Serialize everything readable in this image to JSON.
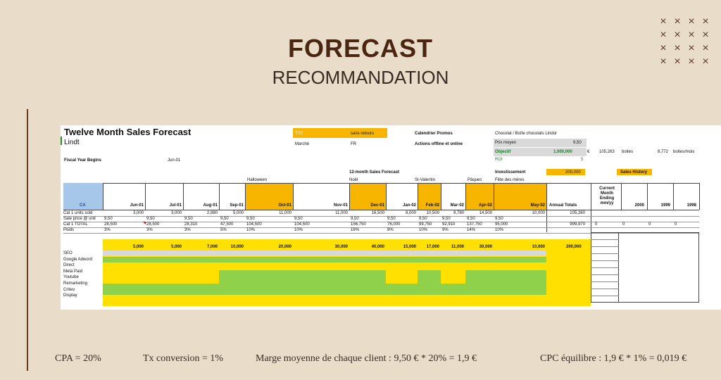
{
  "slide": {
    "title": "FORECAST",
    "subtitle": "RECOMMANDATION",
    "decor_mark": "×"
  },
  "sheet": {
    "title": "Twelve Month Sales Forecast",
    "brand": "Lindt",
    "fiscal_label": "Fiscal Year Begins",
    "fiscal_value": "Jun-01",
    "ttc": "TTC",
    "ttc_value": "sans retours",
    "marche_label": "Marché",
    "marche_value": "FR",
    "calendrier": "Calendrier Promos",
    "actions": "Actions offline et online",
    "product": "Chocolat / Boîte chocolats Lindor",
    "prix_moyen_label": "Prix moyen",
    "prix_moyen_value": "9,50",
    "objectif_label": "Objectif",
    "objectif_value": "1,000,000",
    "objectif_unit": "€",
    "boites_value": "105,263",
    "boites_label": "boites",
    "boites_mois_value": "8,772",
    "boites_mois_label": "boites/mois",
    "roi_label": "ROI",
    "roi_value": "5",
    "sales_forecast_label": "12-month Sales Forecast",
    "investissement_label": "Investissement",
    "investissement_value": "200,000",
    "sales_history_label": "Sales History",
    "events": [
      "Halloween",
      "Noël",
      "St-Valentin",
      "Pâques",
      "Fête des mères"
    ],
    "ca_label": "CA",
    "months": [
      "Jun-01",
      "Jul-01",
      "Aug-01",
      "Sep-01",
      "Oct-01",
      "Nov-01",
      "Dec-01",
      "Jan-02",
      "Feb-02",
      "Mar-02",
      "Apr-02",
      "May-02"
    ],
    "annual_label": "Annual Totals",
    "current_month": [
      "Current",
      "Month",
      "Ending",
      "mm/yy"
    ],
    "history_years": [
      "2000",
      "1999",
      "1998"
    ],
    "rows": [
      {
        "label": "Cat 1 units sold",
        "values": [
          "3,000",
          "3,000",
          "2,980",
          "5,000",
          "11,000",
          "11,000",
          "16,500",
          "8,000",
          "10,500",
          "9,780",
          "14,500",
          "10,000"
        ],
        "total": "105,260"
      },
      {
        "label": "Sale price @ unit",
        "values": [
          "9,50",
          "9,50",
          "9,50",
          "9,50",
          "9,50",
          "9,50",
          "9,50",
          "9,50",
          "9,50",
          "9,50",
          "9,50",
          "9,50"
        ],
        "total": ""
      },
      {
        "label": "Cat 1 TOTAL",
        "values": [
          "28,500",
          "28,500",
          "28,310",
          "47,500",
          "104,500",
          "104,500",
          "156,750",
          "76,000",
          "99,750",
          "92,910",
          "137,750",
          "95,000"
        ],
        "total": "999,970"
      },
      {
        "label": "Poids",
        "values": [
          "3%",
          "3%",
          "3%",
          "5%",
          "10%",
          "10%",
          "16%",
          "8%",
          "10%",
          "9%",
          "14%",
          "10%"
        ],
        "total": ""
      }
    ],
    "history_zeros": [
      "0",
      "0",
      "0",
      "0"
    ],
    "budget_values": [
      "5,000",
      "5,000",
      "7,000",
      "10,000",
      "20,000",
      "30,000",
      "40,000",
      "15,000",
      "17,000",
      "11,000",
      "30,000",
      "10,000"
    ],
    "budget_total": "200,000",
    "channels": [
      "SEO",
      "Google Adword",
      "Direct",
      "Meta Paid",
      "Youtube",
      "Remarketing",
      "Criteo",
      "Display"
    ]
  },
  "footer": {
    "cpa": "CPA = 20%",
    "tx": "Tx conversion = 1%",
    "marge": "Marge moyenne de chaque client : 9,50 € * 20% = 1,9 €",
    "cpc": "CPC équilibre : 1,9 € * 1% = 0,019 €"
  }
}
